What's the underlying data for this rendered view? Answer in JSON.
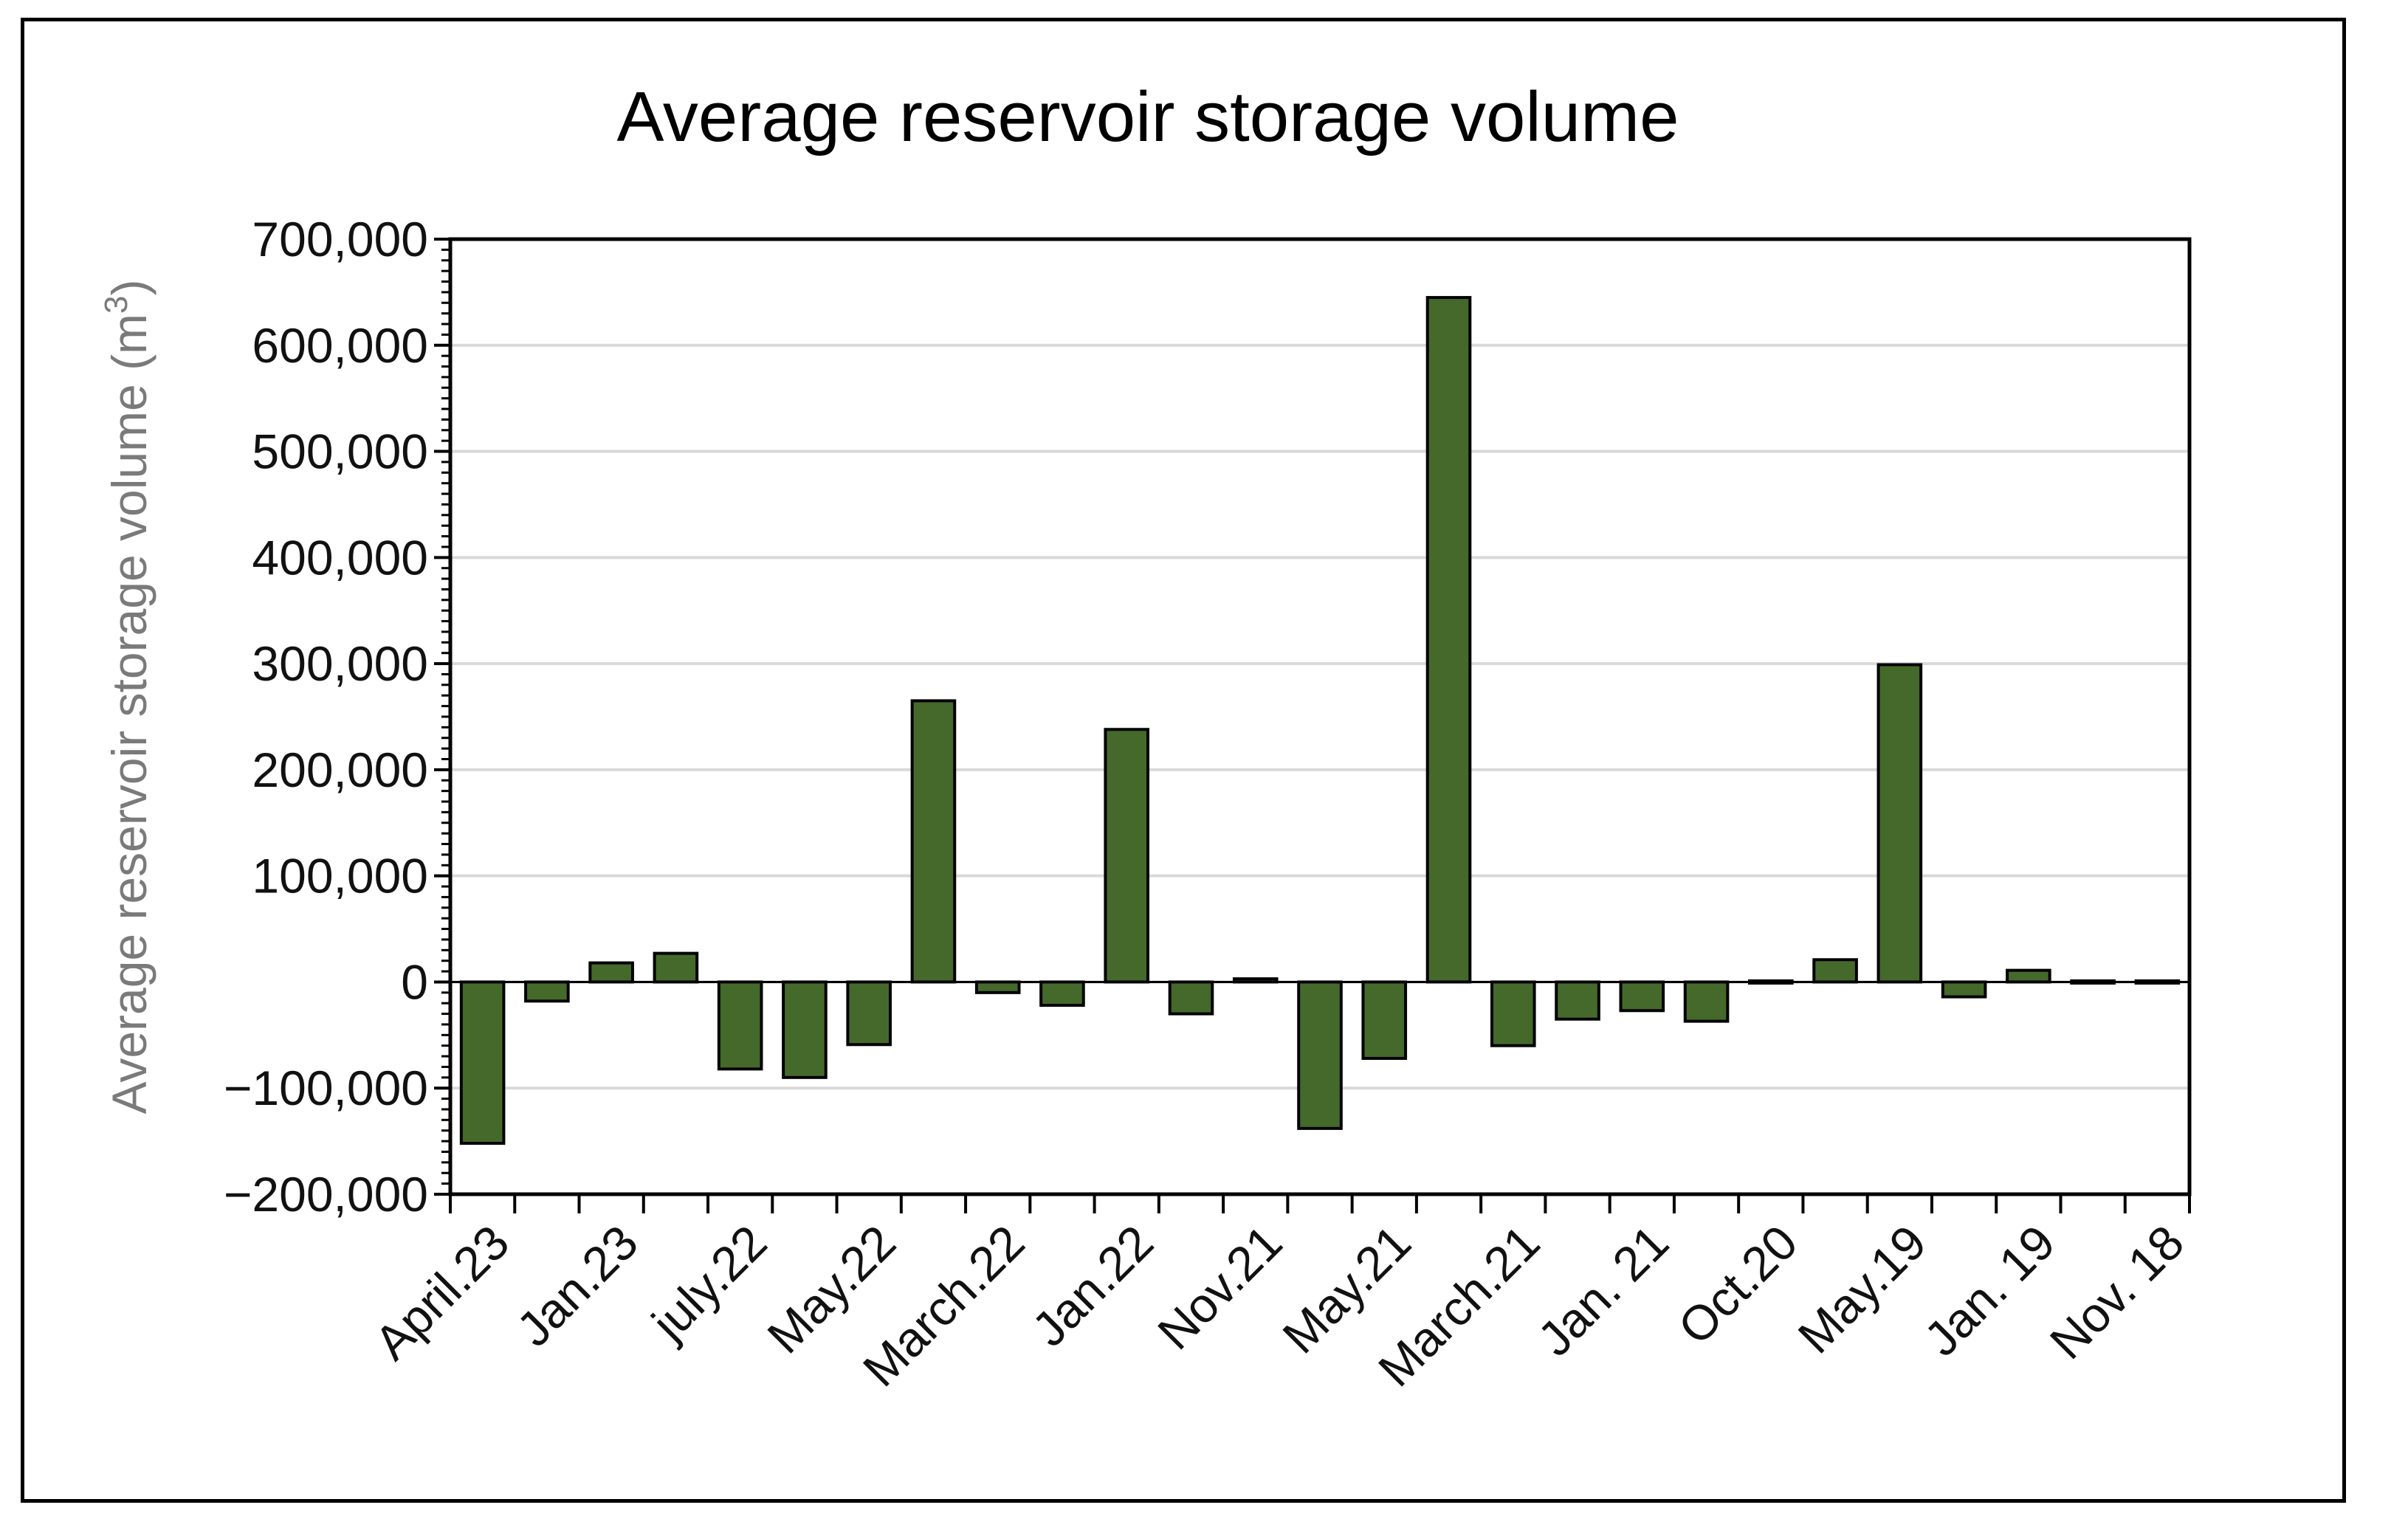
{
  "chart_data": {
    "type": "bar",
    "title": "Average reservoir storage volume",
    "ylabel": "Average reservoir storage volume (m",
    "ylabel_superscript": "3",
    "ylabel_suffix": ")",
    "xlabel": "",
    "ylim": [
      -200000,
      700000
    ],
    "y_ticks": [
      -200000,
      -100000,
      0,
      100000,
      200000,
      300000,
      400000,
      500000,
      600000,
      700000
    ],
    "y_tick_labels": [
      "−200,000",
      "−100,000",
      "0",
      "100,000",
      "200,000",
      "300,000",
      "400,000",
      "500,000",
      "600,000",
      "700,000"
    ],
    "grid": true,
    "bar_color": "#45692b",
    "categories": [
      "April.23",
      "",
      "Jan.23",
      "",
      "july.22",
      "",
      "May.22",
      "",
      "March.22",
      "",
      "Jan.22",
      "",
      "Nov.21",
      "",
      "May.21",
      "",
      "March.21",
      "",
      "Jan. 21",
      "",
      "Oct.20",
      "",
      "May.19",
      "",
      "Jan. 19",
      "",
      "Nov. 18"
    ],
    "values": [
      -152000,
      -18000,
      18000,
      27000,
      -82000,
      -90000,
      -59000,
      265000,
      -10000,
      -22000,
      238000,
      -30000,
      3000,
      -138000,
      -72000,
      645000,
      -60000,
      -35000,
      -27000,
      -37000,
      2000,
      21000,
      299000,
      -14000,
      11000,
      -1500,
      -1500
    ]
  }
}
